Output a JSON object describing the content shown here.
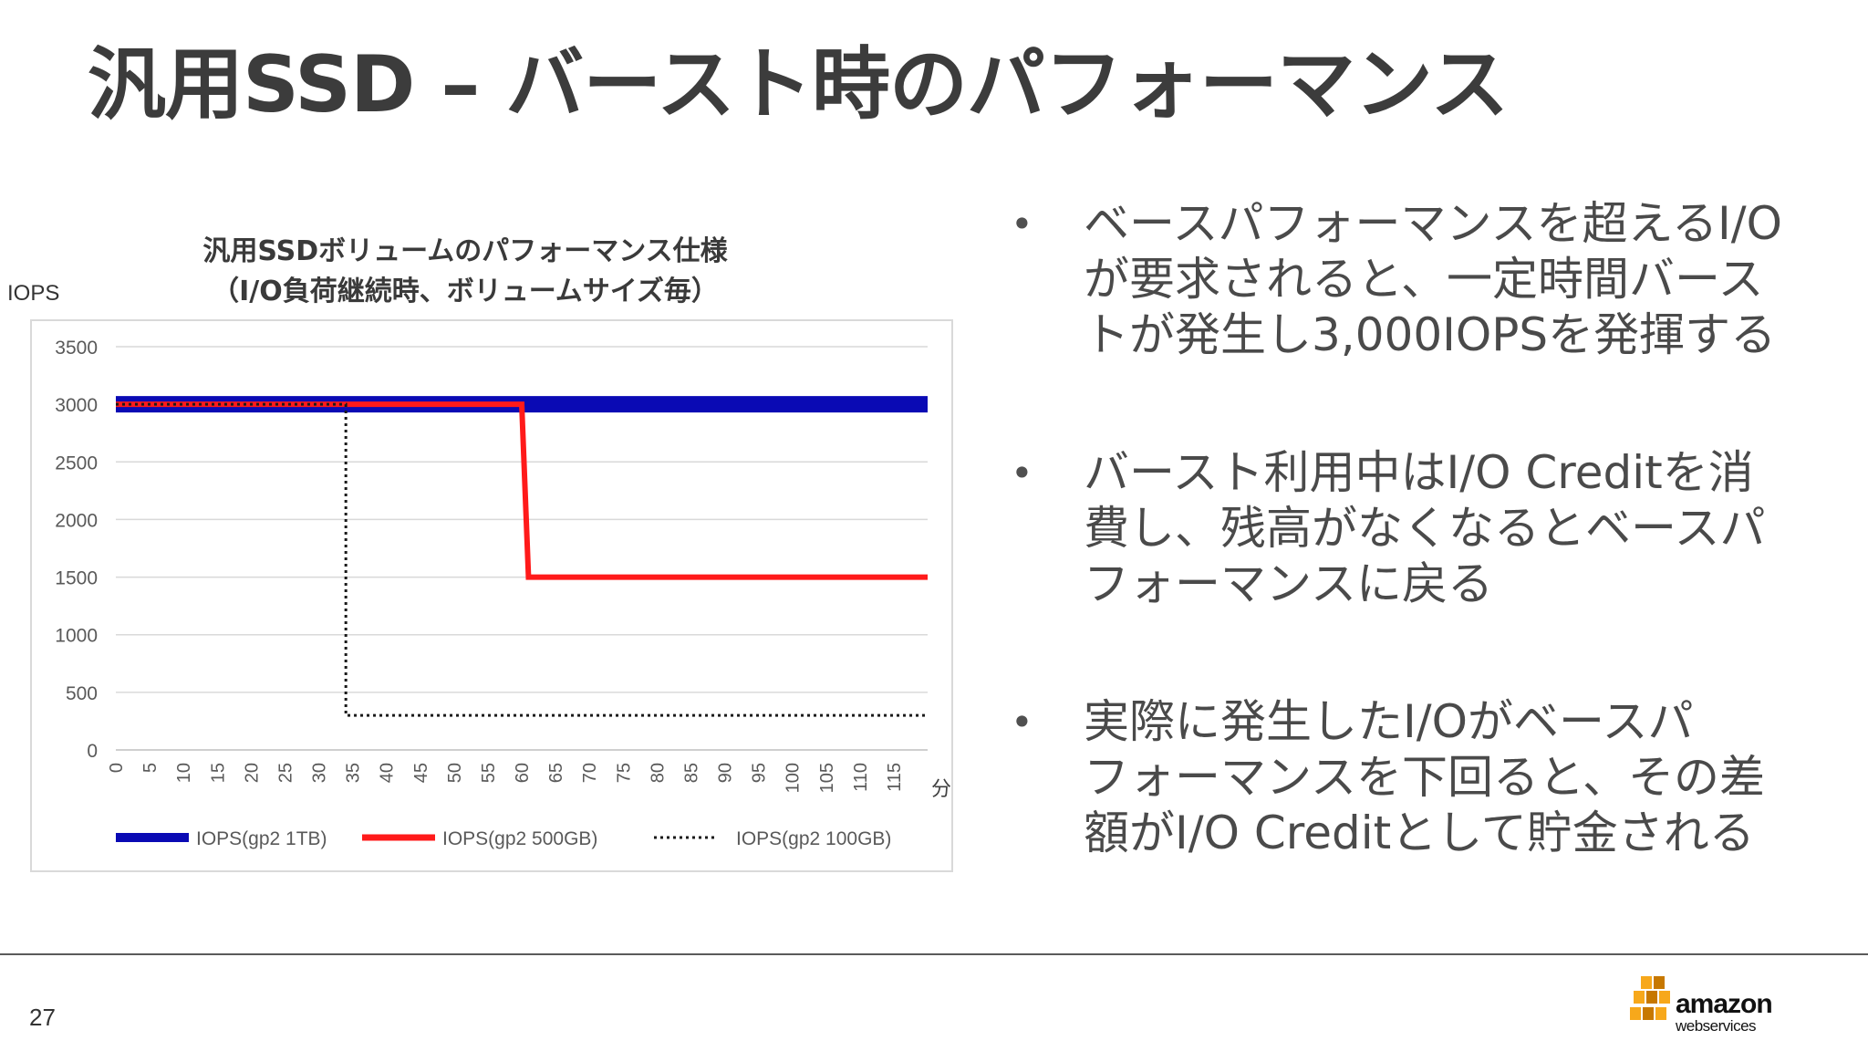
{
  "slide": {
    "title": "汎用SSD – バースト時のパフォーマンス",
    "page_number": "27"
  },
  "chart_data": {
    "type": "line",
    "title_line1": "汎用SSDボリュームのパフォーマンス仕様",
    "title_line2": "（I/O負荷継続時、ボリュームサイズ毎）",
    "ylabel": "IOPS",
    "xlabel": "分",
    "ylim": [
      0,
      3500
    ],
    "yticks": [
      0,
      500,
      1000,
      1500,
      2000,
      2500,
      3000,
      3500
    ],
    "xlim": [
      0,
      120
    ],
    "xticks": [
      0,
      5,
      10,
      15,
      20,
      25,
      30,
      35,
      40,
      45,
      50,
      55,
      60,
      65,
      70,
      75,
      80,
      85,
      90,
      95,
      100,
      105,
      110,
      115
    ],
    "grid": "horizontal",
    "legend_position": "bottom",
    "series": [
      {
        "name": "IOPS(gp2 1TB)",
        "color": "#0a0ab4",
        "style": "thick",
        "x": [
          0,
          120
        ],
        "y": [
          3000,
          3000
        ]
      },
      {
        "name": "IOPS(gp2 500GB)",
        "color": "#ff1a1a",
        "style": "solid",
        "x": [
          0,
          60,
          61,
          120
        ],
        "y": [
          3000,
          3000,
          1500,
          1500
        ]
      },
      {
        "name": "IOPS(gp2 100GB)",
        "color": "#1a1a1a",
        "style": "dotted",
        "x": [
          0,
          34,
          34,
          120
        ],
        "y": [
          3000,
          3000,
          300,
          300
        ]
      }
    ]
  },
  "bullets": [
    [
      "ベースパフォーマンスを超えるI/O",
      "が要求されると、一定時間バース",
      "トが発生し3,000IOPSを発揮する"
    ],
    [
      "バースト利用中はI/O Creditを消",
      "費し、残高がなくなるとベースパ",
      "フォーマンスに戻る"
    ],
    [
      "実際に発生したI/Oがベースパ",
      "フォーマンスを下回ると、その差",
      "額がI/O Creditとして貯金される"
    ]
  ],
  "logo": {
    "word": "amazon",
    "sub": "webservices",
    "colors": {
      "cube": "#f7a81b",
      "cube_dark": "#c77800"
    }
  }
}
